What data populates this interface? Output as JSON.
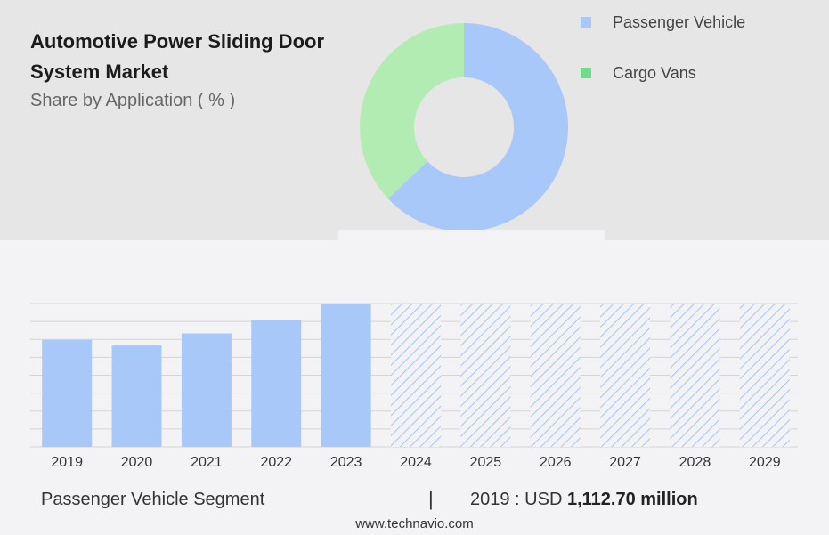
{
  "header": {
    "title": "Automotive Power Sliding Door System Market",
    "subtitle": "Share by Application ( % )"
  },
  "colors": {
    "passenger": "#a8c8fa",
    "cargo": "#b3ecb3",
    "legend_cargo": "#6fdc8c",
    "hatch": "#a8c8fa"
  },
  "chart_data": [
    {
      "type": "pie",
      "donut": true,
      "labels": [
        "Passenger Vehicle",
        "Cargo Vans"
      ],
      "values": [
        63,
        37
      ],
      "legend_position": "top-right"
    },
    {
      "type": "bar",
      "categories": [
        "2019",
        "2020",
        "2021",
        "2022",
        "2023",
        "2024",
        "2025",
        "2026",
        "2027",
        "2028",
        "2029"
      ],
      "values": [
        1112.7,
        1054,
        1180,
        1320,
        1490,
        null,
        null,
        null,
        null,
        null,
        null
      ],
      "forecast_from": "2024",
      "ylim": [
        0,
        1490
      ],
      "grid": true
    }
  ],
  "footer": {
    "segment": "Passenger Vehicle Segment",
    "separator": "|",
    "value_prefix": "2019 : USD",
    "value": "1,112.70 million",
    "website": "www.technavio.com"
  }
}
